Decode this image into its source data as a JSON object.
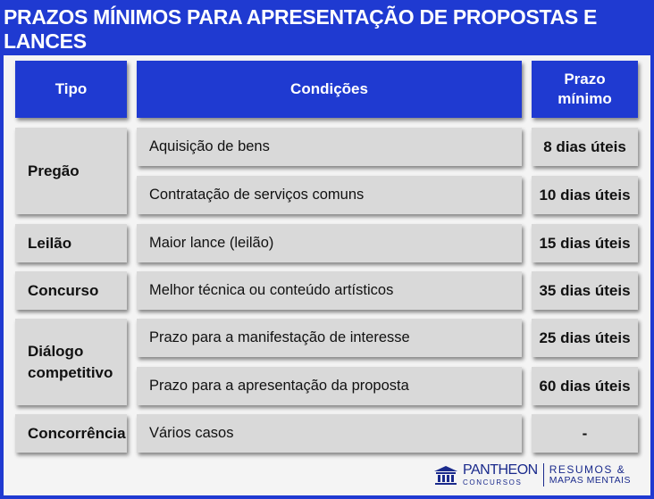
{
  "title": "PRAZOS MÍNIMOS PARA APRESENTAÇÃO DE PROPOSTAS E LANCES",
  "headers": {
    "tipo": "Tipo",
    "condicoes": "Condições",
    "prazo_line1": "Prazo",
    "prazo_line2": "mínimo"
  },
  "rows": {
    "pregao": {
      "tipo": "Pregão",
      "items": [
        {
          "condicao": "Aquisição de bens",
          "prazo": "8 dias úteis"
        },
        {
          "condicao": "Contratação de serviços comuns",
          "prazo": "10 dias úteis"
        }
      ]
    },
    "leilao": {
      "tipo": "Leilão",
      "items": [
        {
          "condicao": "Maior lance (leilão)",
          "prazo": "15 dias úteis"
        }
      ]
    },
    "concurso": {
      "tipo": "Concurso",
      "items": [
        {
          "condicao": "Melhor técnica ou conteúdo artísticos",
          "prazo": "35 dias úteis"
        }
      ]
    },
    "dialogo": {
      "tipo_line1": "Diálogo",
      "tipo_line2": "competitivo",
      "items": [
        {
          "condicao": "Prazo para a manifestação de interesse",
          "prazo": "25 dias úteis"
        },
        {
          "condicao": "Prazo para a apresentação da proposta",
          "prazo": "60 dias úteis"
        }
      ]
    },
    "concorrencia": {
      "tipo": "Concorrência",
      "items": [
        {
          "condicao": "Vários casos",
          "prazo": "-"
        }
      ]
    }
  },
  "logo": {
    "brand": "PANTHEON",
    "brand_sub": "CONCURSOS",
    "tag_line1": "RESUMOS &",
    "tag_line2": "MAPAS MENTAIS"
  },
  "colors": {
    "accent_blue": "#1f3ad1",
    "cell_gray": "#d9d9d9",
    "brand_navy": "#1a2a8c"
  }
}
